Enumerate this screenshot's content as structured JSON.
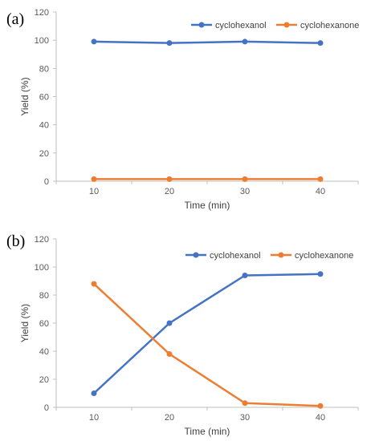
{
  "colors": {
    "cyclohexanol": "#4472C4",
    "cyclohexanone": "#ED7D31",
    "axis": "#bfbfbf"
  },
  "chart_data": [
    {
      "type": "line",
      "panel_label": "(a)",
      "xlabel": "Time (min)",
      "ylabel": "Yield (%)",
      "categories": [
        "10",
        "20",
        "30",
        "40"
      ],
      "ylim": [
        0,
        120
      ],
      "yticks": [
        "0",
        "20",
        "40",
        "60",
        "80",
        "100",
        "120"
      ],
      "grid": false,
      "legend_position": "top-right",
      "series": [
        {
          "name": "cyclohexanol",
          "values": [
            99,
            98,
            99,
            98
          ]
        },
        {
          "name": "cyclohexanone",
          "values": [
            1.5,
            1.5,
            1.5,
            1.5
          ]
        }
      ]
    },
    {
      "type": "line",
      "panel_label": "(b)",
      "xlabel": "Time (min)",
      "ylabel": "Yield (%)",
      "categories": [
        "10",
        "20",
        "30",
        "40"
      ],
      "ylim": [
        0,
        120
      ],
      "yticks": [
        "0",
        "20",
        "40",
        "60",
        "80",
        "100",
        "120"
      ],
      "grid": false,
      "legend_position": "top-right",
      "series": [
        {
          "name": "cyclohexanol",
          "values": [
            10,
            60,
            94,
            95
          ]
        },
        {
          "name": "cyclohexanone",
          "values": [
            88,
            38,
            3,
            1
          ]
        }
      ]
    }
  ]
}
